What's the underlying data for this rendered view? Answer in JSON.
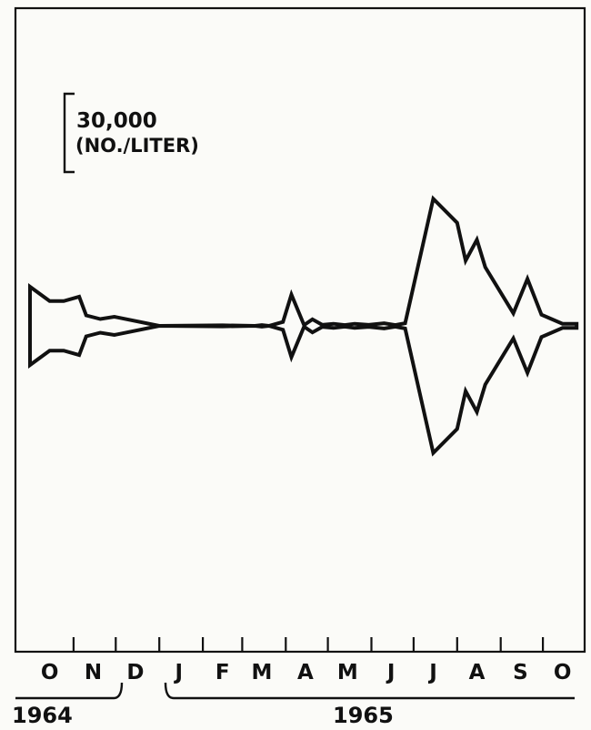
{
  "chart_data": {
    "type": "area",
    "style": "kite diagram (values mirrored about a central axis)",
    "scale_bar": {
      "value_label": "30,000",
      "unit_label": "(NO./LITER)",
      "value": 30000
    },
    "x_months": [
      "O",
      "N",
      "D",
      "J",
      "F",
      "M",
      "A",
      "M",
      "J",
      "J",
      "A",
      "S",
      "O"
    ],
    "year_labels": {
      "first": "1964",
      "second": "1965"
    },
    "x": [
      "1964-10-01",
      "1964-10-15",
      "1964-10-25",
      "1964-11-05",
      "1964-11-10",
      "1964-11-20",
      "1964-11-30",
      "1965-01-01",
      "1965-02-15",
      "1965-03-10",
      "1965-03-15",
      "1965-03-20",
      "1965-03-30",
      "1965-04-05",
      "1965-04-14",
      "1965-04-20",
      "1965-04-27",
      "1965-05-05",
      "1965-05-13",
      "1965-05-20",
      "1965-05-30",
      "1965-06-10",
      "1965-06-18",
      "1965-06-25",
      "1965-07-15",
      "1965-08-01",
      "1965-08-07",
      "1965-08-15",
      "1965-08-21",
      "1965-09-10",
      "1965-09-20",
      "1965-09-30",
      "1965-10-15",
      "1965-10-25"
    ],
    "y": [
      15000,
      9500,
      9500,
      11200,
      4000,
      2600,
      3500,
      0,
      200,
      0,
      300,
      0,
      1500,
      12000,
      300,
      2500,
      400,
      800,
      300,
      800,
      400,
      1000,
      300,
      1000,
      48700,
      39500,
      25000,
      33000,
      22500,
      4800,
      18000,
      4300,
      800,
      800
    ],
    "ylabel": "No./liter"
  }
}
